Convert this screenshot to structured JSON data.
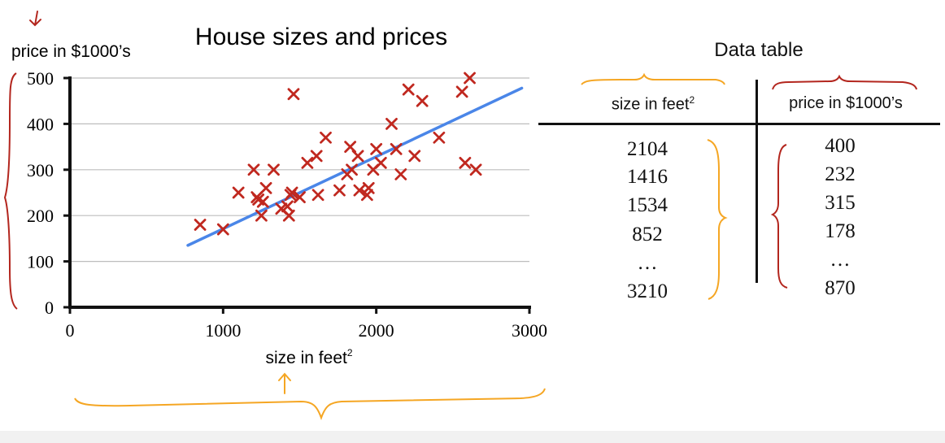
{
  "annotation_colors": {
    "red": "#b3261e",
    "orange": "#f5a623",
    "line": "#4a86e8",
    "marker": "#c0281f"
  },
  "chart_data": {
    "type": "scatter",
    "title": "House sizes and prices",
    "xlabel": "size in feet",
    "xlabel_superscript": "2",
    "ylabel": "price in $1000’s",
    "xlim": [
      0,
      3000
    ],
    "ylim": [
      0,
      500
    ],
    "x_ticks": [
      0,
      1000,
      2000,
      3000
    ],
    "y_ticks": [
      0,
      100,
      200,
      300,
      400,
      500
    ],
    "grid": "horizontal",
    "points": [
      [
        850,
        180
      ],
      [
        1000,
        170
      ],
      [
        1100,
        250
      ],
      [
        1200,
        300
      ],
      [
        1220,
        240
      ],
      [
        1230,
        235
      ],
      [
        1250,
        200
      ],
      [
        1260,
        230
      ],
      [
        1280,
        260
      ],
      [
        1330,
        300
      ],
      [
        1380,
        215
      ],
      [
        1420,
        220
      ],
      [
        1430,
        200
      ],
      [
        1440,
        245
      ],
      [
        1450,
        250
      ],
      [
        1460,
        465
      ],
      [
        1500,
        240
      ],
      [
        1550,
        315
      ],
      [
        1610,
        330
      ],
      [
        1620,
        245
      ],
      [
        1670,
        370
      ],
      [
        1760,
        255
      ],
      [
        1810,
        290
      ],
      [
        1830,
        350
      ],
      [
        1840,
        300
      ],
      [
        1880,
        330
      ],
      [
        1890,
        255
      ],
      [
        1940,
        245
      ],
      [
        1950,
        260
      ],
      [
        1980,
        300
      ],
      [
        2000,
        345
      ],
      [
        2030,
        315
      ],
      [
        2100,
        400
      ],
      [
        2130,
        345
      ],
      [
        2160,
        290
      ],
      [
        2210,
        475
      ],
      [
        2250,
        330
      ],
      [
        2300,
        450
      ],
      [
        2410,
        370
      ],
      [
        2560,
        470
      ],
      [
        2580,
        315
      ],
      [
        2610,
        500
      ],
      [
        2650,
        300
      ]
    ],
    "trend_line": {
      "x": [
        770,
        2950
      ],
      "y": [
        135,
        478
      ]
    }
  },
  "table": {
    "title": "Data table",
    "headers": [
      {
        "text": "size in feet",
        "sup": "2"
      },
      {
        "text": "price in $1000’s",
        "sup": ""
      }
    ],
    "col1": [
      "2104",
      "1416",
      "1534",
      "852",
      "…",
      "3210"
    ],
    "col2": [
      "400",
      "232",
      "315",
      "178",
      "…",
      "870"
    ]
  }
}
